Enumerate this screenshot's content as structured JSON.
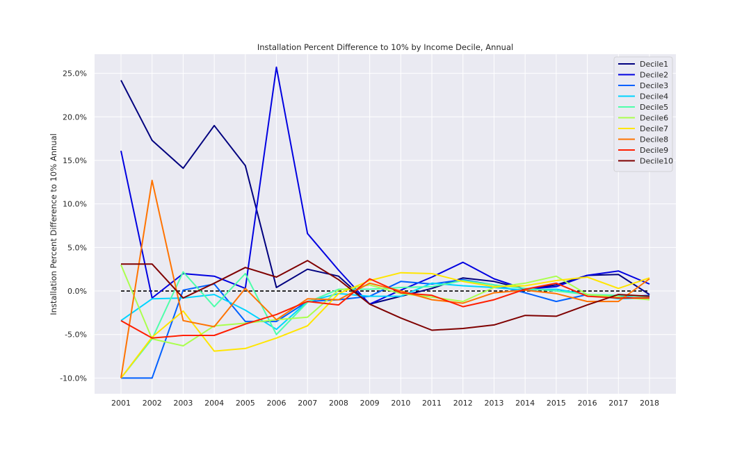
{
  "chart_data": {
    "type": "line",
    "title": "Installation Percent Difference to 10% by Income Decile, Annual",
    "xlabel": "",
    "ylabel": "Installation Percent Difference to 10% Annual",
    "x": [
      2001,
      2002,
      2003,
      2004,
      2005,
      2006,
      2007,
      2008,
      2009,
      2010,
      2011,
      2012,
      2013,
      2014,
      2015,
      2016,
      2017,
      2018
    ],
    "ylim": [
      -0.118,
      0.272
    ],
    "yticks": [
      -0.1,
      -0.05,
      0.0,
      0.05,
      0.1,
      0.15,
      0.2,
      0.25
    ],
    "ytick_labels": [
      "-10.0%",
      "-5.0%",
      "0.0%",
      "5.0%",
      "10.0%",
      "15.0%",
      "20.0%",
      "25.0%"
    ],
    "reference_line": {
      "y": 0.0,
      "style": "dashed",
      "color": "#000000"
    },
    "grid": true,
    "legend_position": "top-right",
    "series": [
      {
        "name": "Decile1",
        "color": "#00007f",
        "values": [
          0.242,
          0.173,
          0.141,
          0.19,
          0.144,
          0.004,
          0.025,
          0.017,
          -0.015,
          -0.006,
          0.003,
          0.015,
          0.011,
          0.002,
          0.007,
          0.018,
          0.019,
          -0.004
        ]
      },
      {
        "name": "Decile2",
        "color": "#0000e0",
        "values": [
          0.161,
          -0.008,
          0.02,
          0.017,
          0.003,
          0.257,
          0.066,
          0.024,
          -0.015,
          0.001,
          0.016,
          0.033,
          0.014,
          0.002,
          0.005,
          0.018,
          0.023,
          0.008
        ]
      },
      {
        "name": "Decile3",
        "color": "#0060ff",
        "values": [
          -0.1,
          -0.1,
          0.001,
          0.008,
          -0.035,
          -0.035,
          -0.012,
          -0.01,
          -0.006,
          0.011,
          0.008,
          0.013,
          0.007,
          -0.002,
          -0.012,
          -0.004,
          -0.007,
          -0.005
        ]
      },
      {
        "name": "Decile4",
        "color": "#00d4ff",
        "values": [
          -0.034,
          -0.009,
          -0.008,
          -0.004,
          -0.022,
          -0.044,
          -0.012,
          -0.003,
          -0.006,
          -0.006,
          0.009,
          0.006,
          0.004,
          0.001,
          0.002,
          -0.004,
          -0.009,
          -0.008
        ]
      },
      {
        "name": "Decile5",
        "color": "#4dffaa",
        "values": [
          -0.1,
          -0.055,
          0.022,
          -0.018,
          0.02,
          -0.05,
          -0.013,
          0.002,
          0.002,
          0.004,
          0.005,
          0.012,
          0.007,
          0.003,
          0.0,
          -0.004,
          -0.005,
          -0.007
        ]
      },
      {
        "name": "Decile6",
        "color": "#aaff4d",
        "values": [
          0.03,
          -0.055,
          -0.063,
          -0.04,
          -0.037,
          -0.033,
          -0.03,
          0.001,
          0.007,
          -0.003,
          -0.007,
          -0.012,
          0.004,
          0.009,
          0.017,
          -0.004,
          -0.007,
          -0.01
        ]
      },
      {
        "name": "Decile7",
        "color": "#ffe500",
        "values": [
          -0.1,
          -0.053,
          -0.023,
          -0.069,
          -0.066,
          -0.054,
          -0.04,
          -0.003,
          0.012,
          0.021,
          0.02,
          0.011,
          0.005,
          0.006,
          0.012,
          0.016,
          0.003,
          0.015
        ]
      },
      {
        "name": "Decile8",
        "color": "#ff7300",
        "values": [
          -0.1,
          0.127,
          -0.034,
          -0.041,
          0.003,
          -0.033,
          -0.009,
          -0.01,
          0.009,
          0.0,
          -0.01,
          -0.014,
          -0.002,
          0.001,
          -0.003,
          -0.012,
          -0.012,
          0.014
        ]
      },
      {
        "name": "Decile9",
        "color": "#ff1e00",
        "values": [
          -0.034,
          -0.054,
          -0.051,
          -0.051,
          -0.038,
          -0.027,
          -0.012,
          -0.016,
          0.014,
          -0.002,
          -0.005,
          -0.018,
          -0.01,
          0.002,
          0.009,
          -0.006,
          -0.008,
          -0.008
        ]
      },
      {
        "name": "Decile10",
        "color": "#7f0000",
        "values": [
          0.031,
          0.031,
          -0.008,
          0.009,
          0.027,
          0.016,
          0.035,
          0.013,
          -0.015,
          -0.031,
          -0.045,
          -0.043,
          -0.039,
          -0.028,
          -0.029,
          -0.016,
          -0.004,
          -0.006
        ]
      }
    ]
  }
}
